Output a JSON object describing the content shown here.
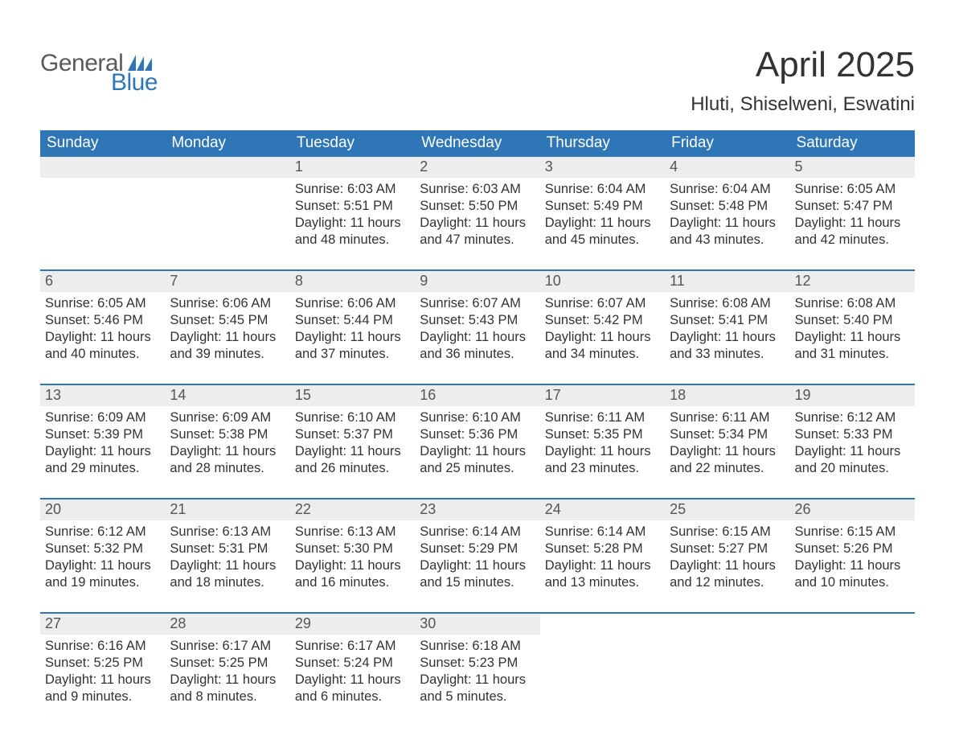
{
  "brand": {
    "word1": "General",
    "word2": "Blue",
    "word1_color": "#5a5a5a",
    "word2_color": "#2e76b6",
    "flag_color": "#2e76b6"
  },
  "title": {
    "month": "April 2025",
    "location": "Hluti, Shiselweni, Eswatini"
  },
  "colors": {
    "header_bg": "#2e76b6",
    "header_text": "#ffffff",
    "daynum_bg": "#ededed",
    "week_border": "#2e76b6",
    "body_text": "#333333",
    "page_bg": "#ffffff"
  },
  "weekdays": [
    "Sunday",
    "Monday",
    "Tuesday",
    "Wednesday",
    "Thursday",
    "Friday",
    "Saturday"
  ],
  "weeks": [
    [
      {
        "n": "",
        "sunrise": "",
        "sunset": "",
        "day1": "",
        "day2": ""
      },
      {
        "n": "",
        "sunrise": "",
        "sunset": "",
        "day1": "",
        "day2": ""
      },
      {
        "n": "1",
        "sunrise": "Sunrise: 6:03 AM",
        "sunset": "Sunset: 5:51 PM",
        "day1": "Daylight: 11 hours",
        "day2": "and 48 minutes."
      },
      {
        "n": "2",
        "sunrise": "Sunrise: 6:03 AM",
        "sunset": "Sunset: 5:50 PM",
        "day1": "Daylight: 11 hours",
        "day2": "and 47 minutes."
      },
      {
        "n": "3",
        "sunrise": "Sunrise: 6:04 AM",
        "sunset": "Sunset: 5:49 PM",
        "day1": "Daylight: 11 hours",
        "day2": "and 45 minutes."
      },
      {
        "n": "4",
        "sunrise": "Sunrise: 6:04 AM",
        "sunset": "Sunset: 5:48 PM",
        "day1": "Daylight: 11 hours",
        "day2": "and 43 minutes."
      },
      {
        "n": "5",
        "sunrise": "Sunrise: 6:05 AM",
        "sunset": "Sunset: 5:47 PM",
        "day1": "Daylight: 11 hours",
        "day2": "and 42 minutes."
      }
    ],
    [
      {
        "n": "6",
        "sunrise": "Sunrise: 6:05 AM",
        "sunset": "Sunset: 5:46 PM",
        "day1": "Daylight: 11 hours",
        "day2": "and 40 minutes."
      },
      {
        "n": "7",
        "sunrise": "Sunrise: 6:06 AM",
        "sunset": "Sunset: 5:45 PM",
        "day1": "Daylight: 11 hours",
        "day2": "and 39 minutes."
      },
      {
        "n": "8",
        "sunrise": "Sunrise: 6:06 AM",
        "sunset": "Sunset: 5:44 PM",
        "day1": "Daylight: 11 hours",
        "day2": "and 37 minutes."
      },
      {
        "n": "9",
        "sunrise": "Sunrise: 6:07 AM",
        "sunset": "Sunset: 5:43 PM",
        "day1": "Daylight: 11 hours",
        "day2": "and 36 minutes."
      },
      {
        "n": "10",
        "sunrise": "Sunrise: 6:07 AM",
        "sunset": "Sunset: 5:42 PM",
        "day1": "Daylight: 11 hours",
        "day2": "and 34 minutes."
      },
      {
        "n": "11",
        "sunrise": "Sunrise: 6:08 AM",
        "sunset": "Sunset: 5:41 PM",
        "day1": "Daylight: 11 hours",
        "day2": "and 33 minutes."
      },
      {
        "n": "12",
        "sunrise": "Sunrise: 6:08 AM",
        "sunset": "Sunset: 5:40 PM",
        "day1": "Daylight: 11 hours",
        "day2": "and 31 minutes."
      }
    ],
    [
      {
        "n": "13",
        "sunrise": "Sunrise: 6:09 AM",
        "sunset": "Sunset: 5:39 PM",
        "day1": "Daylight: 11 hours",
        "day2": "and 29 minutes."
      },
      {
        "n": "14",
        "sunrise": "Sunrise: 6:09 AM",
        "sunset": "Sunset: 5:38 PM",
        "day1": "Daylight: 11 hours",
        "day2": "and 28 minutes."
      },
      {
        "n": "15",
        "sunrise": "Sunrise: 6:10 AM",
        "sunset": "Sunset: 5:37 PM",
        "day1": "Daylight: 11 hours",
        "day2": "and 26 minutes."
      },
      {
        "n": "16",
        "sunrise": "Sunrise: 6:10 AM",
        "sunset": "Sunset: 5:36 PM",
        "day1": "Daylight: 11 hours",
        "day2": "and 25 minutes."
      },
      {
        "n": "17",
        "sunrise": "Sunrise: 6:11 AM",
        "sunset": "Sunset: 5:35 PM",
        "day1": "Daylight: 11 hours",
        "day2": "and 23 minutes."
      },
      {
        "n": "18",
        "sunrise": "Sunrise: 6:11 AM",
        "sunset": "Sunset: 5:34 PM",
        "day1": "Daylight: 11 hours",
        "day2": "and 22 minutes."
      },
      {
        "n": "19",
        "sunrise": "Sunrise: 6:12 AM",
        "sunset": "Sunset: 5:33 PM",
        "day1": "Daylight: 11 hours",
        "day2": "and 20 minutes."
      }
    ],
    [
      {
        "n": "20",
        "sunrise": "Sunrise: 6:12 AM",
        "sunset": "Sunset: 5:32 PM",
        "day1": "Daylight: 11 hours",
        "day2": "and 19 minutes."
      },
      {
        "n": "21",
        "sunrise": "Sunrise: 6:13 AM",
        "sunset": "Sunset: 5:31 PM",
        "day1": "Daylight: 11 hours",
        "day2": "and 18 minutes."
      },
      {
        "n": "22",
        "sunrise": "Sunrise: 6:13 AM",
        "sunset": "Sunset: 5:30 PM",
        "day1": "Daylight: 11 hours",
        "day2": "and 16 minutes."
      },
      {
        "n": "23",
        "sunrise": "Sunrise: 6:14 AM",
        "sunset": "Sunset: 5:29 PM",
        "day1": "Daylight: 11 hours",
        "day2": "and 15 minutes."
      },
      {
        "n": "24",
        "sunrise": "Sunrise: 6:14 AM",
        "sunset": "Sunset: 5:28 PM",
        "day1": "Daylight: 11 hours",
        "day2": "and 13 minutes."
      },
      {
        "n": "25",
        "sunrise": "Sunrise: 6:15 AM",
        "sunset": "Sunset: 5:27 PM",
        "day1": "Daylight: 11 hours",
        "day2": "and 12 minutes."
      },
      {
        "n": "26",
        "sunrise": "Sunrise: 6:15 AM",
        "sunset": "Sunset: 5:26 PM",
        "day1": "Daylight: 11 hours",
        "day2": "and 10 minutes."
      }
    ],
    [
      {
        "n": "27",
        "sunrise": "Sunrise: 6:16 AM",
        "sunset": "Sunset: 5:25 PM",
        "day1": "Daylight: 11 hours",
        "day2": "and 9 minutes."
      },
      {
        "n": "28",
        "sunrise": "Sunrise: 6:17 AM",
        "sunset": "Sunset: 5:25 PM",
        "day1": "Daylight: 11 hours",
        "day2": "and 8 minutes."
      },
      {
        "n": "29",
        "sunrise": "Sunrise: 6:17 AM",
        "sunset": "Sunset: 5:24 PM",
        "day1": "Daylight: 11 hours",
        "day2": "and 6 minutes."
      },
      {
        "n": "30",
        "sunrise": "Sunrise: 6:18 AM",
        "sunset": "Sunset: 5:23 PM",
        "day1": "Daylight: 11 hours",
        "day2": "and 5 minutes."
      },
      {
        "n": "",
        "sunrise": "",
        "sunset": "",
        "day1": "",
        "day2": ""
      },
      {
        "n": "",
        "sunrise": "",
        "sunset": "",
        "day1": "",
        "day2": ""
      },
      {
        "n": "",
        "sunrise": "",
        "sunset": "",
        "day1": "",
        "day2": ""
      }
    ]
  ]
}
